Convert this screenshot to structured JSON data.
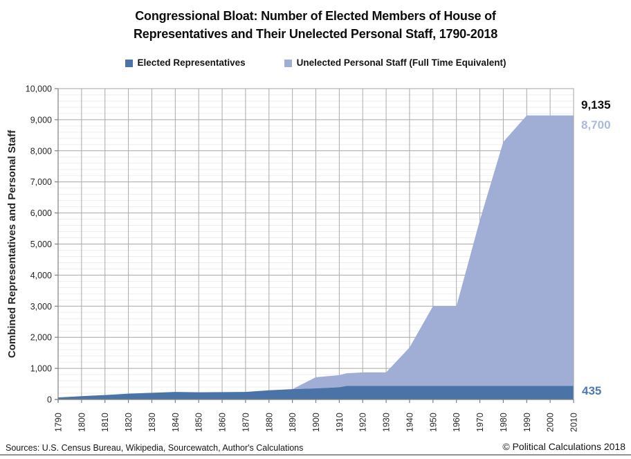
{
  "title": {
    "line1": "Congressional Bloat: Number of Elected Members of House of",
    "line2": "Representatives and Their Unelected Personal Staff, 1790-2018"
  },
  "legend": [
    {
      "label": "Elected Representatives",
      "color": "#4a74a8"
    },
    {
      "label": "Unelected Personal Staff (Full Time Equivalent)",
      "color": "#a0aed6"
    }
  ],
  "annotations": {
    "total": {
      "text": "9,135",
      "color": "#0d0d0d"
    },
    "staff": {
      "text": "8,700",
      "color": "#aab9dc"
    },
    "reps": {
      "text": "435",
      "color": "#4d79b5"
    }
  },
  "footer": {
    "sources": "Sources: U.S. Census Bureau, Wikipedia, Sourcewatch, Author's Calculations",
    "copyright": "© Political Calculations 2018"
  },
  "chart_data": {
    "type": "area",
    "stacked": true,
    "title": "Congressional Bloat: Number of Elected Members of House of Representatives and Their Unelected Personal Staff, 1790-2018",
    "xlabel": "",
    "ylabel": "Combined Representatives and Personal Staff",
    "xlim": [
      1790,
      2010
    ],
    "ylim": [
      0,
      10000
    ],
    "grid": "major-and-minor-horizontal, decade-vertical",
    "legend_position": "top",
    "y_ticks": [
      {
        "v": 0,
        "label": "0"
      },
      {
        "v": 1000,
        "label": "1,000"
      },
      {
        "v": 2000,
        "label": "2,000"
      },
      {
        "v": 3000,
        "label": "3,000"
      },
      {
        "v": 4000,
        "label": "4,000"
      },
      {
        "v": 5000,
        "label": "5,000"
      },
      {
        "v": 6000,
        "label": "6,000"
      },
      {
        "v": 7000,
        "label": "7,000"
      },
      {
        "v": 8000,
        "label": "8,000"
      },
      {
        "v": 9000,
        "label": "9,000"
      },
      {
        "v": 10000,
        "label": "10,000"
      }
    ],
    "y_minor_step": 200,
    "x_ticks": [
      {
        "year": 1790,
        "label": "1790"
      },
      {
        "year": 1800,
        "label": "1800"
      },
      {
        "year": 1810,
        "label": "1810"
      },
      {
        "year": 1820,
        "label": "1820"
      },
      {
        "year": 1830,
        "label": "1830"
      },
      {
        "year": 1840,
        "label": "1840"
      },
      {
        "year": 1850,
        "label": "1850"
      },
      {
        "year": 1860,
        "label": "1860"
      },
      {
        "year": 1870,
        "label": "1870"
      },
      {
        "year": 1880,
        "label": "1880"
      },
      {
        "year": 1890,
        "label": "1890"
      },
      {
        "year": 1900,
        "label": "1900"
      },
      {
        "year": 1910,
        "label": "1910"
      },
      {
        "year": 1920,
        "label": "1920"
      },
      {
        "year": 1930,
        "label": "1930"
      },
      {
        "year": 1940,
        "label": "1940"
      },
      {
        "year": 1950,
        "label": "1950"
      },
      {
        "year": 1960,
        "label": "1960"
      },
      {
        "year": 1970,
        "label": "1970"
      },
      {
        "year": 1980,
        "label": "1980"
      },
      {
        "year": 1990,
        "label": "1990"
      },
      {
        "year": 2000,
        "label": "2000"
      },
      {
        "year": 2010,
        "label": "2010"
      }
    ],
    "years": [
      1790,
      1800,
      1810,
      1820,
      1830,
      1840,
      1850,
      1860,
      1870,
      1880,
      1890,
      1900,
      1910,
      1913,
      1920,
      1930,
      1940,
      1950,
      1960,
      1970,
      1980,
      1990,
      2000,
      2010,
      2018
    ],
    "series": [
      {
        "name": "Elected Representatives",
        "color": "#4a74a8",
        "values": [
          65,
          106,
          142,
          186,
          213,
          242,
          232,
          237,
          243,
          293,
          332,
          357,
          391,
          435,
          435,
          435,
          435,
          435,
          435,
          435,
          435,
          435,
          435,
          435,
          435
        ]
      },
      {
        "name": "Unelected Personal Staff (Full Time Equivalent)",
        "color": "#a0aed6",
        "values": [
          0,
          0,
          0,
          0,
          0,
          0,
          0,
          0,
          0,
          0,
          0,
          357,
          391,
          405,
          435,
          435,
          1240,
          2565,
          2565,
          5330,
          7850,
          8700,
          8700,
          8700,
          8700
        ]
      }
    ],
    "final_values": {
      "combined_total": 9135,
      "staff": 8700,
      "representatives": 435
    }
  }
}
